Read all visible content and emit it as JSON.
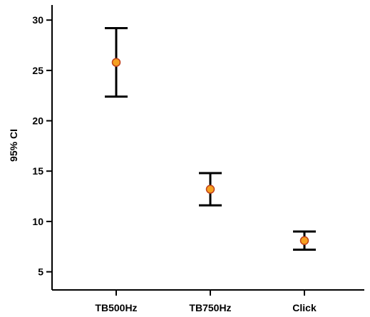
{
  "chart_data": {
    "type": "scatter",
    "subtype": "error-bar",
    "title": "",
    "xlabel": "",
    "ylabel": "95% CI",
    "categories": [
      "TB500Hz",
      "TB750Hz",
      "Click"
    ],
    "y_ticks": [
      5,
      10,
      15,
      20,
      25,
      30
    ],
    "ylim": [
      3.2,
      31.5
    ],
    "grid": false,
    "legend": "none",
    "series": [
      {
        "means": [
          25.8,
          13.2,
          8.1
        ],
        "lower": [
          22.4,
          11.6,
          7.2
        ],
        "upper": [
          29.2,
          14.8,
          9.0
        ]
      }
    ],
    "colors": {
      "marker_fill": "#f5a020",
      "marker_stroke": "#c0401a",
      "bar": "#000000",
      "axis": "#000000"
    }
  }
}
